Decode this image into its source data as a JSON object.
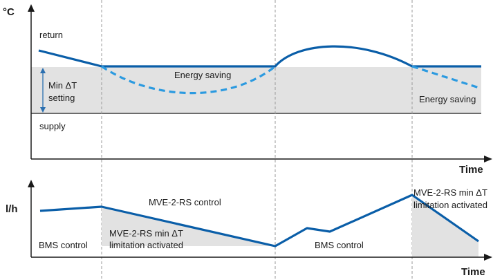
{
  "top_chart": {
    "y_unit": "°C",
    "x_label": "Time",
    "labels": {
      "return": "return",
      "supply": "supply",
      "min_dt_line1": "Min ΔT",
      "min_dt_line2": "setting",
      "energy_saving_1": "Energy saving",
      "energy_saving_2": "Energy saving"
    }
  },
  "bottom_chart": {
    "y_unit": "l/h",
    "x_label": "Time",
    "labels": {
      "mve_control": "MVE-2-RS control",
      "limitation_mid_line1": "MVE-2-RS min ΔT",
      "limitation_mid_line2": "limitation activated",
      "bms_control_1": "BMS control",
      "bms_control_2": "BMS control",
      "limitation_right_line1": "MVE-2-RS min ΔT",
      "limitation_right_line2": "limitation activated"
    }
  },
  "colors": {
    "curve": "#0a5ea8",
    "dashed_curve": "#2b9ae0",
    "band": "#e2e2e2",
    "axis": "#1a1a1a",
    "divider": "#9a9a9a"
  }
}
